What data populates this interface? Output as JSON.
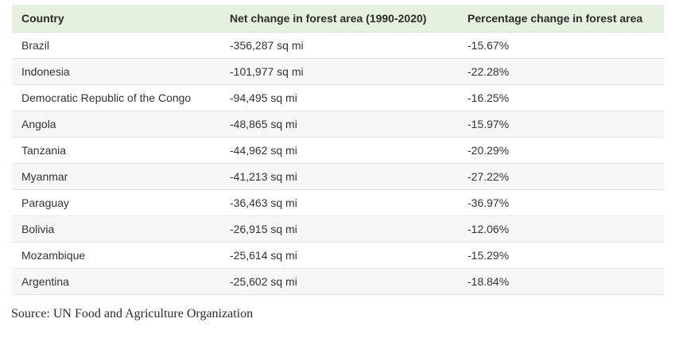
{
  "table": {
    "headers": [
      "Country",
      "Net change in forest area (1990-2020)",
      "Percentage change in forest area"
    ],
    "rows": [
      [
        "Brazil",
        "-356,287 sq mi",
        "-15.67%"
      ],
      [
        "Indonesia",
        "-101,977 sq mi",
        "-22.28%"
      ],
      [
        "Democratic Republic of the Congo",
        "-94,495 sq mi",
        "-16.25%"
      ],
      [
        "Angola",
        "-48,865 sq mi",
        "-15.97%"
      ],
      [
        "Tanzania",
        "-44,962 sq mi",
        "-20.29%"
      ],
      [
        "Myanmar",
        "-41,213 sq mi",
        "-27.22%"
      ],
      [
        "Paraguay",
        "-36,463 sq mi",
        "-36.97%"
      ],
      [
        "Bolivia",
        "-26,915 sq mi",
        "-12.06%"
      ],
      [
        "Mozambique",
        "-25,614 sq mi",
        "-15.29%"
      ],
      [
        "Argentina",
        "-25,602 sq mi",
        "-18.84%"
      ]
    ]
  },
  "source": "Source: UN Food and Agriculture Organization",
  "colors": {
    "header_bg": "#e6f0df",
    "row_alt_bg": "#f7f7f7",
    "text": "#333333"
  }
}
